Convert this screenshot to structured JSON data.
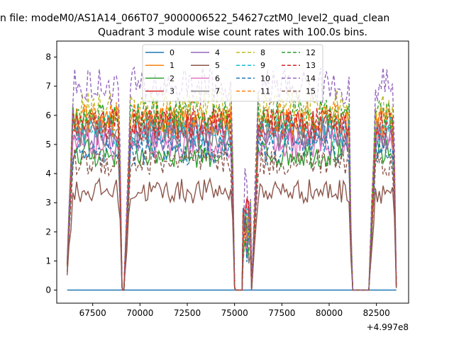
{
  "chart_data": {
    "type": "line",
    "suptitle": "n file: modeM0/AS1A14_066T07_9000006522_54627cztM0_level2_quad_clean",
    "title": "Quadrant 3 module wise count rates with 100.0s bins.",
    "xlabel": "",
    "ylabel": "",
    "x_offset_label": "+4.997e8",
    "xlim": [
      65600,
      84200
    ],
    "ylim": [
      -0.45,
      8.55
    ],
    "xticks": [
      67500,
      70000,
      72500,
      75000,
      77500,
      80000,
      82500
    ],
    "yticks": [
      0,
      1,
      2,
      3,
      4,
      5,
      6,
      7,
      8
    ],
    "grid": false,
    "legend_position": "top-center",
    "legend_columns": 4,
    "bin_seconds": 100,
    "segments": [
      [
        66150,
        69050
      ],
      [
        69200,
        75000
      ],
      [
        75450,
        75850
      ],
      [
        75950,
        81200
      ],
      [
        82150,
        83550
      ]
    ],
    "series": [
      {
        "name": "0",
        "color": "#1f77b4",
        "style": "solid",
        "level": 0.0
      },
      {
        "name": "1",
        "color": "#ff7f0e",
        "style": "solid",
        "level": 5.8
      },
      {
        "name": "2",
        "color": "#2ca02c",
        "style": "solid",
        "level": 4.7
      },
      {
        "name": "3",
        "color": "#d62728",
        "style": "solid",
        "level": 5.6
      },
      {
        "name": "4",
        "color": "#9467bd",
        "style": "solid",
        "level": 5.3
      },
      {
        "name": "5",
        "color": "#8c564b",
        "style": "solid",
        "level": 3.4
      },
      {
        "name": "6",
        "color": "#e377c2",
        "style": "solid",
        "level": 5.0
      },
      {
        "name": "7",
        "color": "#7f7f7f",
        "style": "solid",
        "level": 5.4
      },
      {
        "name": "8",
        "color": "#bcbd22",
        "style": "dashed",
        "level": 6.3
      },
      {
        "name": "9",
        "color": "#17becf",
        "style": "dashed",
        "level": 5.5
      },
      {
        "name": "10",
        "color": "#1f77b4",
        "style": "dashed",
        "level": 4.8
      },
      {
        "name": "11",
        "color": "#ff7f0e",
        "style": "dashed",
        "level": 5.9
      },
      {
        "name": "12",
        "color": "#2ca02c",
        "style": "dashed",
        "level": 6.0
      },
      {
        "name": "13",
        "color": "#d62728",
        "style": "dashed",
        "level": 5.7
      },
      {
        "name": "14",
        "color": "#9467bd",
        "style": "dashed",
        "level": 7.0
      },
      {
        "name": "15",
        "color": "#8c564b",
        "style": "dashed",
        "level": 4.4
      }
    ]
  }
}
